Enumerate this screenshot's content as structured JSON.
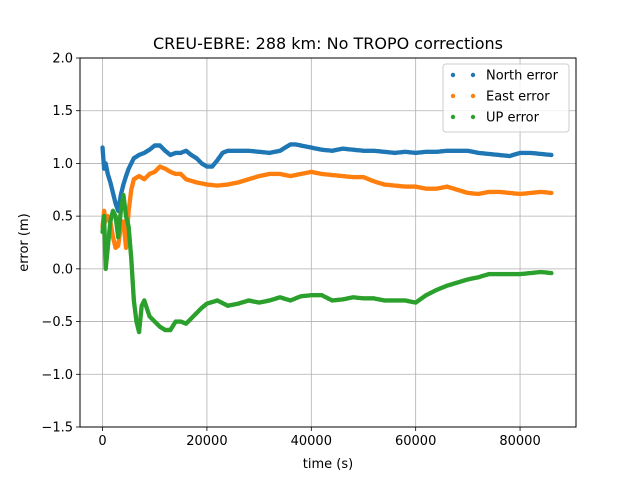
{
  "chart_data": {
    "type": "scatter",
    "title": "CREU-EBRE: 288 km: No TROPO corrections",
    "xlabel": "time (s)",
    "ylabel": "error (m)",
    "xlim": [
      -4320,
      90720
    ],
    "ylim": [
      -1.5,
      2.0
    ],
    "xticks": [
      0,
      20000,
      40000,
      60000,
      80000
    ],
    "xtick_labels": [
      "0",
      "20000",
      "40000",
      "60000",
      "80000"
    ],
    "yticks": [
      -1.5,
      -1.0,
      -0.5,
      0.0,
      0.5,
      1.0,
      1.5,
      2.0
    ],
    "ytick_labels": [
      "−1.5",
      "−1.0",
      "−0.5",
      "0.0",
      "0.5",
      "1.0",
      "1.5",
      "2.0"
    ],
    "grid": true,
    "legend_position": "top-right",
    "series": [
      {
        "name": "North error",
        "color": "#1f77b4",
        "x": [
          0,
          300,
          600,
          1000,
          1500,
          2000,
          2500,
          3000,
          3500,
          4000,
          4500,
          5000,
          5500,
          6000,
          7000,
          8000,
          9000,
          10000,
          11000,
          12000,
          13000,
          14000,
          15000,
          16000,
          17000,
          18000,
          19000,
          20000,
          21000,
          22000,
          23000,
          24000,
          26000,
          28000,
          30000,
          32000,
          34000,
          35000,
          36000,
          37000,
          38000,
          40000,
          42000,
          44000,
          46000,
          48000,
          50000,
          52000,
          54000,
          56000,
          58000,
          60000,
          62000,
          64000,
          66000,
          68000,
          70000,
          72000,
          74000,
          76000,
          78000,
          80000,
          82000,
          84000,
          86000
        ],
        "y": [
          1.15,
          0.95,
          1.0,
          0.9,
          0.82,
          0.72,
          0.62,
          0.55,
          0.7,
          0.8,
          0.88,
          0.95,
          1.0,
          1.05,
          1.08,
          1.1,
          1.13,
          1.17,
          1.17,
          1.12,
          1.08,
          1.1,
          1.1,
          1.12,
          1.08,
          1.05,
          1.0,
          0.97,
          0.97,
          1.03,
          1.1,
          1.12,
          1.12,
          1.12,
          1.11,
          1.1,
          1.12,
          1.15,
          1.18,
          1.18,
          1.17,
          1.15,
          1.13,
          1.12,
          1.14,
          1.13,
          1.12,
          1.12,
          1.11,
          1.1,
          1.11,
          1.1,
          1.11,
          1.11,
          1.12,
          1.12,
          1.12,
          1.1,
          1.09,
          1.08,
          1.07,
          1.1,
          1.1,
          1.09,
          1.08
        ]
      },
      {
        "name": "East error",
        "color": "#ff7f0e",
        "x": [
          0,
          300,
          600,
          1000,
          1500,
          2000,
          2500,
          3000,
          3500,
          4000,
          4500,
          5000,
          5500,
          6000,
          7000,
          8000,
          9000,
          10000,
          11000,
          12000,
          13000,
          14000,
          15000,
          16000,
          18000,
          20000,
          22000,
          24000,
          26000,
          28000,
          30000,
          32000,
          34000,
          36000,
          38000,
          40000,
          42000,
          44000,
          46000,
          48000,
          50000,
          52000,
          54000,
          56000,
          58000,
          60000,
          62000,
          64000,
          66000,
          68000,
          70000,
          72000,
          74000,
          76000,
          78000,
          80000,
          82000,
          84000,
          86000
        ],
        "y": [
          0.4,
          0.55,
          0.45,
          0.5,
          0.45,
          0.3,
          0.2,
          0.22,
          0.4,
          0.45,
          0.2,
          0.55,
          0.75,
          0.85,
          0.88,
          0.85,
          0.9,
          0.92,
          0.97,
          0.95,
          0.92,
          0.9,
          0.9,
          0.85,
          0.82,
          0.8,
          0.79,
          0.8,
          0.82,
          0.85,
          0.88,
          0.9,
          0.9,
          0.88,
          0.9,
          0.92,
          0.9,
          0.89,
          0.88,
          0.87,
          0.87,
          0.83,
          0.8,
          0.79,
          0.78,
          0.78,
          0.76,
          0.76,
          0.78,
          0.75,
          0.72,
          0.71,
          0.73,
          0.73,
          0.72,
          0.71,
          0.72,
          0.73,
          0.72
        ]
      },
      {
        "name": "UP error",
        "color": "#2ca02c",
        "x": [
          0,
          300,
          600,
          1000,
          1500,
          2000,
          2500,
          3000,
          3500,
          4000,
          4500,
          5000,
          5500,
          6000,
          6500,
          7000,
          7500,
          8000,
          9000,
          10000,
          11000,
          12000,
          13000,
          14000,
          15000,
          16000,
          17000,
          18000,
          19000,
          20000,
          22000,
          24000,
          26000,
          28000,
          30000,
          32000,
          34000,
          36000,
          38000,
          40000,
          42000,
          44000,
          46000,
          48000,
          50000,
          52000,
          54000,
          56000,
          58000,
          60000,
          62000,
          64000,
          66000,
          68000,
          70000,
          72000,
          74000,
          76000,
          78000,
          80000,
          82000,
          84000,
          86000
        ],
        "y": [
          0.35,
          0.5,
          0.0,
          0.2,
          0.45,
          0.55,
          0.5,
          0.3,
          0.55,
          0.7,
          0.5,
          0.4,
          0.1,
          -0.3,
          -0.5,
          -0.6,
          -0.35,
          -0.3,
          -0.45,
          -0.5,
          -0.55,
          -0.58,
          -0.58,
          -0.5,
          -0.5,
          -0.52,
          -0.47,
          -0.42,
          -0.37,
          -0.33,
          -0.3,
          -0.35,
          -0.33,
          -0.3,
          -0.32,
          -0.3,
          -0.27,
          -0.3,
          -0.26,
          -0.25,
          -0.25,
          -0.3,
          -0.29,
          -0.27,
          -0.28,
          -0.28,
          -0.3,
          -0.3,
          -0.3,
          -0.32,
          -0.25,
          -0.2,
          -0.16,
          -0.13,
          -0.1,
          -0.08,
          -0.05,
          -0.05,
          -0.05,
          -0.05,
          -0.04,
          -0.03,
          -0.04
        ]
      }
    ]
  }
}
